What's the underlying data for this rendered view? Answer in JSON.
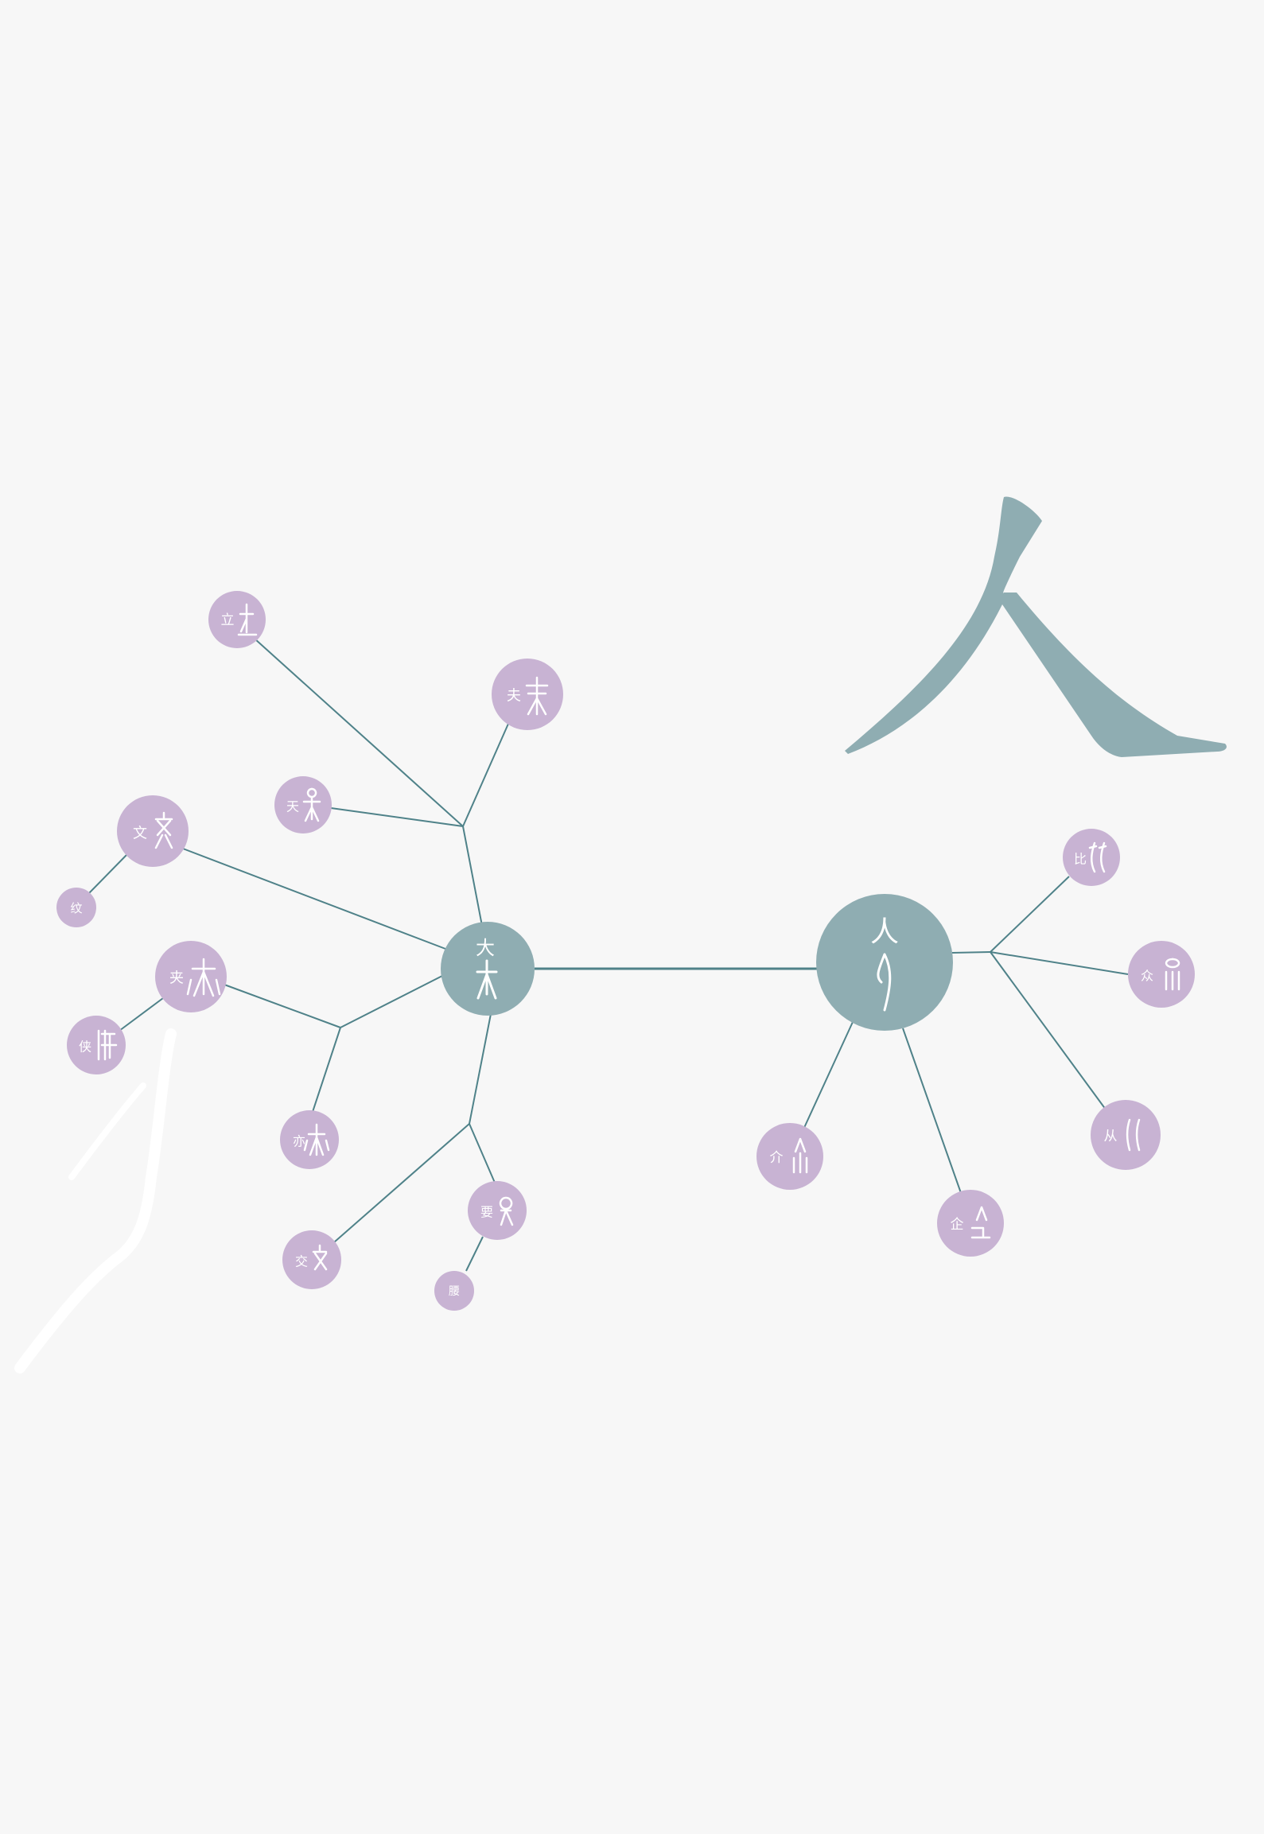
{
  "diagram": {
    "big_character": "人",
    "hubs": {
      "da": {
        "label": "大"
      },
      "ren": {
        "label": "人"
      }
    },
    "leaves": {
      "li": {
        "label": "立"
      },
      "fu": {
        "label": "夫"
      },
      "tian": {
        "label": "天"
      },
      "wen": {
        "label": "文"
      },
      "wen2": {
        "label": "纹"
      },
      "jia": {
        "label": "夹"
      },
      "xia": {
        "label": "侠"
      },
      "yi": {
        "label": "亦"
      },
      "jiao": {
        "label": "交"
      },
      "yao": {
        "label": "要"
      },
      "yao2": {
        "label": "腰"
      },
      "bi": {
        "label": "比"
      },
      "zhong": {
        "label": "众"
      },
      "cong": {
        "label": "从"
      },
      "jie": {
        "label": "介"
      },
      "qi": {
        "label": "企"
      }
    },
    "colors": {
      "background": "#f7f7f7",
      "hub": "#8fadb2",
      "leaf": "#c8b3d3",
      "edge": "#4f8289",
      "text": "#ffffff"
    }
  }
}
